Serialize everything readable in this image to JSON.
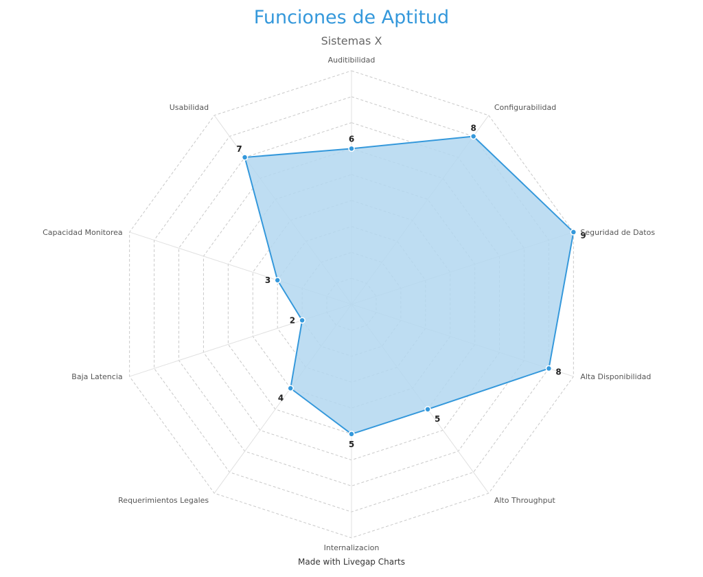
{
  "title": "Funciones de Aptitud",
  "subtitle": "Sistemas X",
  "footer": "Made with Livegap Charts",
  "colors": {
    "title": "#3498db",
    "line": "#3498db",
    "fill": "#b3d7f0",
    "point": "#3498db",
    "grid": "#c8c8c8",
    "spoke": "#e0e0e0"
  },
  "chart_data": {
    "type": "radar",
    "title": "Funciones de Aptitud",
    "subtitle": "Sistemas X",
    "categories": [
      "Auditibilidad",
      "Configurabilidad",
      "Seguridad de Datos",
      "Alta Disponibilidad",
      "Alto Throughput",
      "Internalizacion",
      "Requerimientos Legales",
      "Baja Latencia",
      "Capacidad Monitorea",
      "Usabilidad"
    ],
    "series": [
      {
        "values": [
          6,
          8,
          9,
          8,
          5,
          5,
          4,
          2,
          3,
          7
        ]
      }
    ],
    "rlim": [
      0,
      9
    ],
    "grid": true,
    "legend": "none"
  }
}
